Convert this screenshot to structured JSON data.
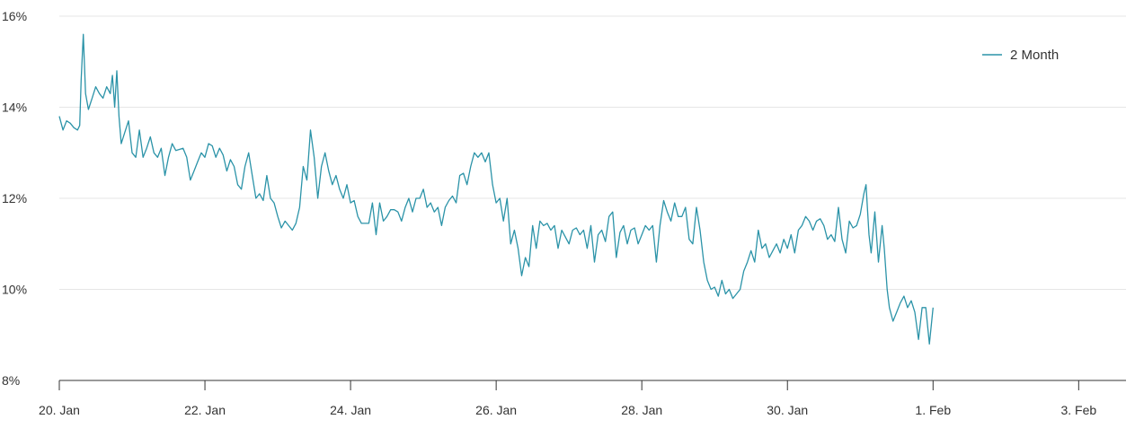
{
  "chart_data": {
    "type": "line",
    "y_axis": {
      "ticks": [
        8,
        10,
        12,
        14,
        16
      ],
      "tick_labels": [
        "8%",
        "10%",
        "12%",
        "14%",
        "16%"
      ],
      "ylim": [
        8,
        16
      ]
    },
    "x_axis": {
      "ticks": [
        0,
        2,
        4,
        6,
        8,
        10,
        12,
        14
      ],
      "tick_labels": [
        "20. Jan",
        "22. Jan",
        "24. Jan",
        "26. Jan",
        "28. Jan",
        "30. Jan",
        "1. Feb",
        "3. Feb"
      ],
      "xlim": [
        0,
        14.65
      ]
    },
    "grid": true,
    "legend": {
      "position": "top-right"
    },
    "colors": {
      "series": "#2b93a8",
      "grid": "#e6e6e6",
      "axis": "#333333",
      "text": "#333333"
    },
    "series": [
      {
        "name": "2 Month",
        "points": [
          [
            0.0,
            13.8
          ],
          [
            0.05,
            13.5
          ],
          [
            0.1,
            13.7
          ],
          [
            0.15,
            13.65
          ],
          [
            0.2,
            13.55
          ],
          [
            0.25,
            13.5
          ],
          [
            0.28,
            13.6
          ],
          [
            0.3,
            14.6
          ],
          [
            0.33,
            15.6
          ],
          [
            0.36,
            14.3
          ],
          [
            0.4,
            13.95
          ],
          [
            0.45,
            14.2
          ],
          [
            0.5,
            14.45
          ],
          [
            0.55,
            14.3
          ],
          [
            0.6,
            14.2
          ],
          [
            0.65,
            14.45
          ],
          [
            0.7,
            14.3
          ],
          [
            0.73,
            14.7
          ],
          [
            0.76,
            14.0
          ],
          [
            0.79,
            14.8
          ],
          [
            0.82,
            13.8
          ],
          [
            0.85,
            13.2
          ],
          [
            0.9,
            13.45
          ],
          [
            0.95,
            13.7
          ],
          [
            1.0,
            13.0
          ],
          [
            1.05,
            12.9
          ],
          [
            1.1,
            13.5
          ],
          [
            1.15,
            12.9
          ],
          [
            1.2,
            13.1
          ],
          [
            1.25,
            13.35
          ],
          [
            1.3,
            13.0
          ],
          [
            1.35,
            12.9
          ],
          [
            1.4,
            13.1
          ],
          [
            1.45,
            12.5
          ],
          [
            1.5,
            12.9
          ],
          [
            1.55,
            13.2
          ],
          [
            1.6,
            13.05
          ],
          [
            1.7,
            13.1
          ],
          [
            1.75,
            12.9
          ],
          [
            1.8,
            12.4
          ],
          [
            1.85,
            12.6
          ],
          [
            1.9,
            12.8
          ],
          [
            1.95,
            13.0
          ],
          [
            2.0,
            12.9
          ],
          [
            2.05,
            13.2
          ],
          [
            2.1,
            13.15
          ],
          [
            2.15,
            12.9
          ],
          [
            2.2,
            13.1
          ],
          [
            2.25,
            12.95
          ],
          [
            2.3,
            12.6
          ],
          [
            2.35,
            12.85
          ],
          [
            2.4,
            12.7
          ],
          [
            2.45,
            12.3
          ],
          [
            2.5,
            12.2
          ],
          [
            2.55,
            12.7
          ],
          [
            2.6,
            13.0
          ],
          [
            2.65,
            12.5
          ],
          [
            2.7,
            12.0
          ],
          [
            2.75,
            12.1
          ],
          [
            2.8,
            11.95
          ],
          [
            2.85,
            12.5
          ],
          [
            2.9,
            12.0
          ],
          [
            2.95,
            11.9
          ],
          [
            3.0,
            11.6
          ],
          [
            3.05,
            11.35
          ],
          [
            3.1,
            11.5
          ],
          [
            3.15,
            11.4
          ],
          [
            3.2,
            11.3
          ],
          [
            3.25,
            11.45
          ],
          [
            3.3,
            11.8
          ],
          [
            3.35,
            12.7
          ],
          [
            3.4,
            12.4
          ],
          [
            3.45,
            13.5
          ],
          [
            3.5,
            12.9
          ],
          [
            3.55,
            12.0
          ],
          [
            3.6,
            12.7
          ],
          [
            3.65,
            13.0
          ],
          [
            3.7,
            12.6
          ],
          [
            3.75,
            12.3
          ],
          [
            3.8,
            12.5
          ],
          [
            3.85,
            12.2
          ],
          [
            3.9,
            12.0
          ],
          [
            3.95,
            12.3
          ],
          [
            4.0,
            11.9
          ],
          [
            4.05,
            11.95
          ],
          [
            4.1,
            11.6
          ],
          [
            4.15,
            11.45
          ],
          [
            4.2,
            11.45
          ],
          [
            4.25,
            11.45
          ],
          [
            4.3,
            11.9
          ],
          [
            4.35,
            11.2
          ],
          [
            4.4,
            11.9
          ],
          [
            4.45,
            11.5
          ],
          [
            4.5,
            11.6
          ],
          [
            4.55,
            11.75
          ],
          [
            4.6,
            11.75
          ],
          [
            4.65,
            11.7
          ],
          [
            4.7,
            11.5
          ],
          [
            4.75,
            11.8
          ],
          [
            4.8,
            12.0
          ],
          [
            4.85,
            11.7
          ],
          [
            4.9,
            12.0
          ],
          [
            4.95,
            12.0
          ],
          [
            5.0,
            12.2
          ],
          [
            5.05,
            11.8
          ],
          [
            5.1,
            11.9
          ],
          [
            5.15,
            11.7
          ],
          [
            5.2,
            11.8
          ],
          [
            5.25,
            11.4
          ],
          [
            5.3,
            11.8
          ],
          [
            5.35,
            11.95
          ],
          [
            5.4,
            12.05
          ],
          [
            5.45,
            11.9
          ],
          [
            5.5,
            12.5
          ],
          [
            5.55,
            12.55
          ],
          [
            5.6,
            12.3
          ],
          [
            5.65,
            12.7
          ],
          [
            5.7,
            13.0
          ],
          [
            5.75,
            12.9
          ],
          [
            5.8,
            13.0
          ],
          [
            5.85,
            12.8
          ],
          [
            5.9,
            13.0
          ],
          [
            5.95,
            12.3
          ],
          [
            6.0,
            11.9
          ],
          [
            6.05,
            12.0
          ],
          [
            6.1,
            11.5
          ],
          [
            6.15,
            12.0
          ],
          [
            6.2,
            11.0
          ],
          [
            6.25,
            11.3
          ],
          [
            6.3,
            10.9
          ],
          [
            6.35,
            10.3
          ],
          [
            6.4,
            10.7
          ],
          [
            6.45,
            10.5
          ],
          [
            6.5,
            11.4
          ],
          [
            6.55,
            10.9
          ],
          [
            6.6,
            11.5
          ],
          [
            6.65,
            11.4
          ],
          [
            6.7,
            11.45
          ],
          [
            6.75,
            11.3
          ],
          [
            6.8,
            11.4
          ],
          [
            6.85,
            10.9
          ],
          [
            6.9,
            11.3
          ],
          [
            6.95,
            11.15
          ],
          [
            7.0,
            11.0
          ],
          [
            7.05,
            11.3
          ],
          [
            7.1,
            11.35
          ],
          [
            7.15,
            11.2
          ],
          [
            7.2,
            11.3
          ],
          [
            7.25,
            10.9
          ],
          [
            7.3,
            11.4
          ],
          [
            7.35,
            10.6
          ],
          [
            7.4,
            11.2
          ],
          [
            7.45,
            11.3
          ],
          [
            7.5,
            11.05
          ],
          [
            7.55,
            11.6
          ],
          [
            7.6,
            11.7
          ],
          [
            7.65,
            10.7
          ],
          [
            7.7,
            11.25
          ],
          [
            7.75,
            11.4
          ],
          [
            7.8,
            11.0
          ],
          [
            7.85,
            11.3
          ],
          [
            7.9,
            11.35
          ],
          [
            7.95,
            11.0
          ],
          [
            8.0,
            11.2
          ],
          [
            8.05,
            11.4
          ],
          [
            8.1,
            11.3
          ],
          [
            8.15,
            11.4
          ],
          [
            8.2,
            10.6
          ],
          [
            8.25,
            11.4
          ],
          [
            8.3,
            11.95
          ],
          [
            8.35,
            11.7
          ],
          [
            8.4,
            11.5
          ],
          [
            8.45,
            11.9
          ],
          [
            8.5,
            11.6
          ],
          [
            8.55,
            11.6
          ],
          [
            8.6,
            11.8
          ],
          [
            8.65,
            11.1
          ],
          [
            8.7,
            11.0
          ],
          [
            8.75,
            11.8
          ],
          [
            8.8,
            11.3
          ],
          [
            8.85,
            10.6
          ],
          [
            8.9,
            10.2
          ],
          [
            8.95,
            10.0
          ],
          [
            9.0,
            10.05
          ],
          [
            9.05,
            9.85
          ],
          [
            9.1,
            10.2
          ],
          [
            9.15,
            9.9
          ],
          [
            9.2,
            10.0
          ],
          [
            9.25,
            9.8
          ],
          [
            9.3,
            9.9
          ],
          [
            9.35,
            10.0
          ],
          [
            9.4,
            10.4
          ],
          [
            9.45,
            10.6
          ],
          [
            9.5,
            10.85
          ],
          [
            9.55,
            10.6
          ],
          [
            9.6,
            11.3
          ],
          [
            9.65,
            10.9
          ],
          [
            9.7,
            11.0
          ],
          [
            9.75,
            10.7
          ],
          [
            9.8,
            10.85
          ],
          [
            9.85,
            11.0
          ],
          [
            9.9,
            10.8
          ],
          [
            9.95,
            11.1
          ],
          [
            10.0,
            10.9
          ],
          [
            10.05,
            11.2
          ],
          [
            10.1,
            10.8
          ],
          [
            10.15,
            11.3
          ],
          [
            10.2,
            11.4
          ],
          [
            10.25,
            11.6
          ],
          [
            10.3,
            11.5
          ],
          [
            10.35,
            11.3
          ],
          [
            10.4,
            11.5
          ],
          [
            10.45,
            11.55
          ],
          [
            10.5,
            11.4
          ],
          [
            10.55,
            11.1
          ],
          [
            10.6,
            11.2
          ],
          [
            10.65,
            11.05
          ],
          [
            10.7,
            11.8
          ],
          [
            10.75,
            11.1
          ],
          [
            10.8,
            10.8
          ],
          [
            10.85,
            11.5
          ],
          [
            10.9,
            11.35
          ],
          [
            10.95,
            11.4
          ],
          [
            11.0,
            11.65
          ],
          [
            11.05,
            12.1
          ],
          [
            11.08,
            12.3
          ],
          [
            11.12,
            11.2
          ],
          [
            11.15,
            10.8
          ],
          [
            11.2,
            11.7
          ],
          [
            11.25,
            10.6
          ],
          [
            11.3,
            11.4
          ],
          [
            11.33,
            10.9
          ],
          [
            11.37,
            10.0
          ],
          [
            11.4,
            9.6
          ],
          [
            11.45,
            9.3
          ],
          [
            11.5,
            9.5
          ],
          [
            11.55,
            9.7
          ],
          [
            11.6,
            9.85
          ],
          [
            11.65,
            9.6
          ],
          [
            11.7,
            9.75
          ],
          [
            11.75,
            9.5
          ],
          [
            11.8,
            8.9
          ],
          [
            11.85,
            9.6
          ],
          [
            11.9,
            9.6
          ],
          [
            11.95,
            8.8
          ],
          [
            12.0,
            9.6
          ]
        ]
      }
    ]
  }
}
